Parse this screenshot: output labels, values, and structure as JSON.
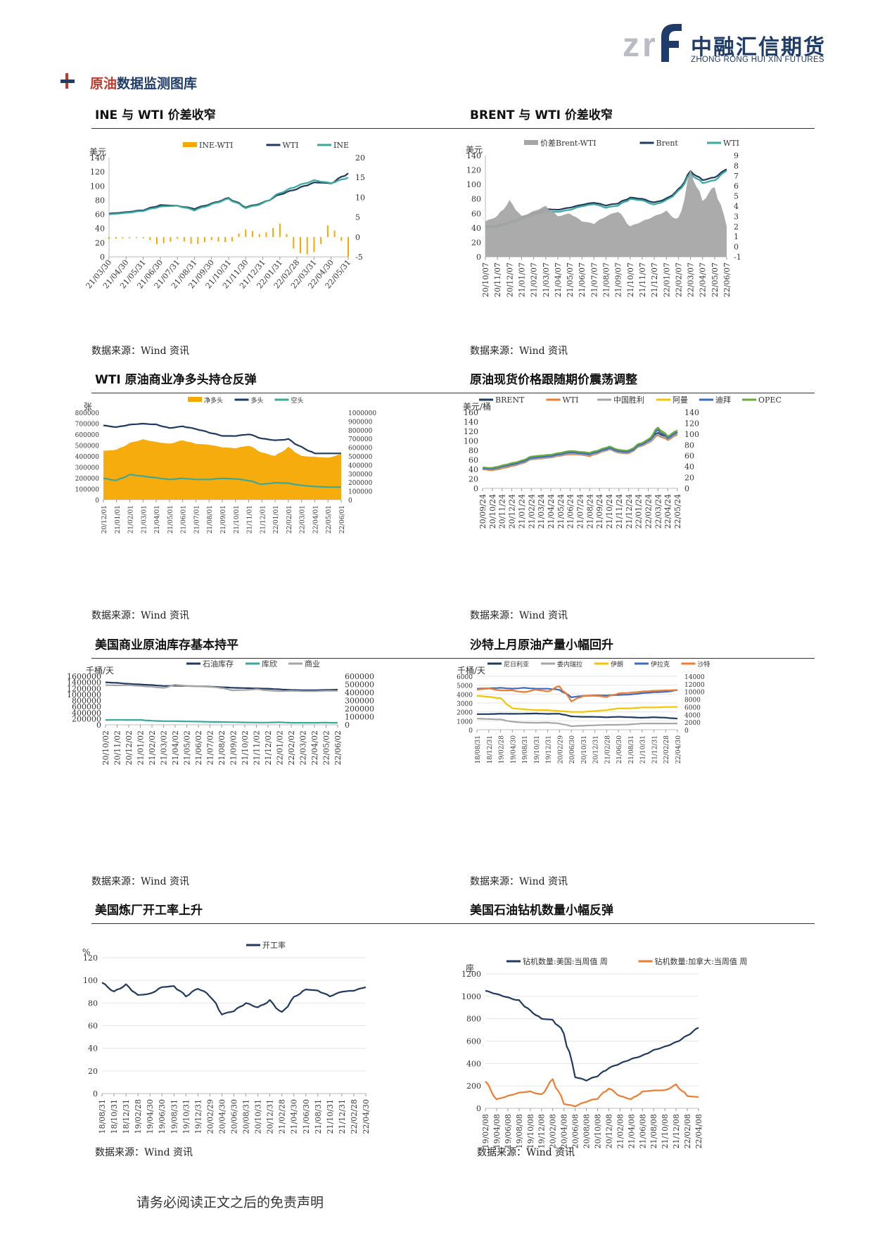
{
  "header": {
    "logo_mark": "znf",
    "logo_cn": "中融汇信期货",
    "logo_en": "ZHONG RONG HUI XIN FUTURES"
  },
  "section": {
    "title_highlight": "原油",
    "title_rest": "数据监测图库"
  },
  "charts": [
    {
      "title": "INE 与 WTI 价差收窄",
      "source": "数据来源：Wind 资讯"
    },
    {
      "title": "BRENT 与 WTI 价差收窄",
      "source": "数据来源：Wind 资讯"
    },
    {
      "title": "WTI 原油商业净多头持仓反弹",
      "source": "数据来源：Wind 资讯"
    },
    {
      "title": "原油现货价格跟随期价震荡调整",
      "source": "数据来源：Wind 资讯"
    },
    {
      "title": "美国商业原油库存基本持平",
      "source": "数据来源：Wind 资讯"
    },
    {
      "title": "沙特上月原油产量小幅回升",
      "source": "数据来源：Wind 资讯"
    },
    {
      "title": "美国炼厂开工率上升",
      "source": "数据来源：Wind 资讯"
    },
    {
      "title": "美国石油钻机数量小幅反弹",
      "source": "数据来源：Wind 资讯"
    }
  ],
  "footer": "请务必阅读正文之后的免责声明",
  "colors": {
    "navy": "#1f3a5f",
    "teal": "#3aa99a",
    "orange": "#f5a800",
    "gray": "#a6a6a6",
    "orange2": "#ed7d31",
    "yellow": "#f5c400",
    "blue": "#3b6bc4",
    "green": "#6aaa3a"
  },
  "chart_data": [
    {
      "type": "line",
      "ylabel": "美元",
      "legend": [
        "INE-WTI",
        "WTI",
        "INE"
      ],
      "x": [
        "21/03/30",
        "21/04/30",
        "21/05/31",
        "21/06/30",
        "21/07/31",
        "21/08/31",
        "21/09/30",
        "21/10/31",
        "21/11/30",
        "21/12/31",
        "22/01/31",
        "22/02/28",
        "22/03/31",
        "22/04/30",
        "22/05/31"
      ],
      "ylim": [
        0,
        140
      ],
      "y2lim": [
        -5,
        20
      ],
      "yticks": [
        0,
        20,
        40,
        60,
        80,
        100,
        120,
        140
      ],
      "y2ticks": [
        -5,
        0,
        5,
        10,
        15,
        20
      ],
      "series": [
        {
          "name": "WTI",
          "values": [
            61,
            63,
            66,
            73,
            72,
            68,
            75,
            83,
            70,
            76,
            88,
            96,
            105,
            104,
            118
          ]
        },
        {
          "name": "INE",
          "values": [
            60,
            62,
            65,
            71,
            72,
            66,
            74,
            82,
            69,
            75,
            90,
            100,
            108,
            104,
            112
          ]
        },
        {
          "name": "INE-WTI",
          "values": [
            -0.5,
            -0.3,
            -0.2,
            -2,
            -0.5,
            -2,
            -0.8,
            -1.5,
            2,
            0.5,
            3.5,
            -4,
            -4.5,
            4,
            -5
          ]
        }
      ]
    },
    {
      "type": "line",
      "ylabel": "美元",
      "legend": [
        "价差Brent-WTI",
        "Brent",
        "WTI"
      ],
      "x": [
        "20/10/07",
        "20/11/07",
        "20/12/07",
        "21/01/07",
        "21/02/07",
        "21/03/07",
        "21/04/07",
        "21/05/07",
        "21/06/07",
        "21/07/07",
        "21/08/07",
        "21/09/07",
        "21/10/07",
        "21/11/07",
        "21/12/07",
        "22/01/07",
        "22/02/07",
        "22/03/07",
        "22/04/07",
        "22/05/07",
        "22/06/07"
      ],
      "ylim": [
        0,
        140
      ],
      "y2lim": [
        -1,
        9
      ],
      "yticks": [
        0,
        20,
        40,
        60,
        80,
        100,
        120,
        140
      ],
      "y2ticks": [
        -1,
        0,
        1,
        2,
        3,
        4,
        5,
        6,
        7,
        8,
        9
      ],
      "series": [
        {
          "name": "Brent",
          "values": [
            42,
            43,
            48,
            54,
            60,
            66,
            65,
            68,
            72,
            75,
            71,
            74,
            82,
            80,
            75,
            80,
            92,
            118,
            106,
            110,
            121
          ]
        },
        {
          "name": "WTI",
          "values": [
            40,
            41,
            46,
            51,
            58,
            63,
            62,
            65,
            70,
            73,
            68,
            71,
            80,
            78,
            72,
            78,
            90,
            115,
            102,
            106,
            119
          ]
        },
        {
          "name": "价差Brent-WTI",
          "values": [
            2.5,
            3,
            4.5,
            3,
            3.5,
            4,
            3,
            3.3,
            2.5,
            2.3,
            3,
            3.5,
            2,
            2.5,
            3,
            3.5,
            2.5,
            7.5,
            4.5,
            6,
            2
          ]
        }
      ]
    },
    {
      "type": "area",
      "ylabel": "张",
      "legend": [
        "净多头",
        "多头",
        "空头"
      ],
      "x": [
        "20/12/01",
        "21/01/01",
        "21/02/01",
        "21/03/01",
        "21/04/01",
        "21/05/01",
        "21/06/01",
        "21/07/01",
        "21/08/01",
        "21/09/01",
        "21/10/01",
        "21/11/01",
        "21/12/01",
        "22/01/01",
        "22/02/01",
        "22/03/01",
        "22/04/01",
        "22/05/01",
        "22/06/01"
      ],
      "ylim": [
        0,
        800000
      ],
      "y2lim": [
        0,
        1000000
      ],
      "yticks": [
        0,
        100000,
        200000,
        300000,
        400000,
        500000,
        600000,
        700000,
        800000
      ],
      "y2ticks": [
        0,
        100000,
        200000,
        300000,
        400000,
        500000,
        600000,
        700000,
        800000,
        900000,
        1000000
      ],
      "series": [
        {
          "name": "净多头",
          "values": [
            560000,
            570000,
            650000,
            690000,
            660000,
            640000,
            680000,
            640000,
            630000,
            600000,
            590000,
            620000,
            540000,
            500000,
            600000,
            500000,
            490000,
            480000,
            520000
          ]
        },
        {
          "name": "多头",
          "values": [
            850000,
            830000,
            860000,
            870000,
            860000,
            820000,
            840000,
            810000,
            770000,
            730000,
            730000,
            750000,
            700000,
            680000,
            690000,
            600000,
            530000,
            530000,
            530000
          ]
        },
        {
          "name": "空头",
          "values": [
            195000,
            175000,
            230000,
            215000,
            200000,
            185000,
            195000,
            185000,
            185000,
            195000,
            190000,
            175000,
            140000,
            155000,
            150000,
            130000,
            120000,
            115000,
            115000
          ]
        }
      ]
    },
    {
      "type": "line",
      "ylabel": "美元/桶",
      "legend": [
        "BRENT",
        "WTI",
        "中国胜利",
        "阿曼",
        "迪拜",
        "OPEC"
      ],
      "x": [
        "20/09/24",
        "20/10/24",
        "20/11/24",
        "20/12/24",
        "21/01/24",
        "21/02/24",
        "21/03/24",
        "21/04/24",
        "21/05/24",
        "21/06/24",
        "21/07/24",
        "21/08/24",
        "21/09/24",
        "21/10/24",
        "21/11/24",
        "21/12/24",
        "22/01/24",
        "22/02/24",
        "22/03/24",
        "22/04/24",
        "22/05/24"
      ],
      "ylim": [
        0,
        160
      ],
      "y2lim": [
        0,
        140
      ],
      "yticks": [
        0,
        20,
        40,
        60,
        80,
        100,
        120,
        140,
        160
      ],
      "y2ticks": [
        0,
        20,
        40,
        60,
        80,
        100,
        120,
        140
      ],
      "series": [
        {
          "name": "BRENT",
          "values": [
            42,
            41,
            46,
            50,
            55,
            64,
            66,
            68,
            72,
            76,
            74,
            72,
            78,
            85,
            78,
            76,
            90,
            98,
            117,
            106,
            118
          ]
        },
        {
          "name": "WTI",
          "values": [
            40,
            38,
            42,
            47,
            52,
            61,
            63,
            65,
            69,
            72,
            71,
            68,
            75,
            82,
            75,
            73,
            87,
            95,
            112,
            102,
            113
          ]
        },
        {
          "name": "中国胜利",
          "values": [
            41,
            40,
            44,
            49,
            53,
            62,
            64,
            66,
            70,
            73,
            72,
            70,
            76,
            83,
            76,
            74,
            88,
            96,
            114,
            104,
            115
          ]
        },
        {
          "name": "阿曼",
          "values": [
            43,
            42,
            47,
            51,
            56,
            65,
            67,
            69,
            73,
            77,
            75,
            73,
            79,
            86,
            79,
            77,
            91,
            100,
            125,
            108,
            119
          ]
        },
        {
          "name": "迪拜",
          "values": [
            42,
            41,
            46,
            50,
            55,
            64,
            66,
            68,
            72,
            76,
            74,
            72,
            78,
            85,
            78,
            76,
            90,
            99,
            123,
            106,
            118
          ]
        },
        {
          "name": "OPEC",
          "values": [
            44,
            43,
            48,
            53,
            58,
            67,
            69,
            71,
            75,
            79,
            77,
            75,
            81,
            88,
            81,
            79,
            93,
            102,
            128,
            110,
            122
          ]
        }
      ]
    },
    {
      "type": "line",
      "ylabel": "千桶/天",
      "legend": [
        "石油库存",
        "库欣",
        "商业"
      ],
      "x": [
        "20/10/02",
        "20/11/02",
        "20/12/02",
        "21/01/02",
        "21/02/02",
        "21/03/02",
        "21/04/02",
        "21/05/02",
        "21/06/02",
        "21/07/02",
        "21/08/02",
        "21/09/02",
        "21/10/02",
        "21/11/02",
        "21/12/02",
        "22/01/02",
        "22/02/02",
        "22/03/02",
        "22/04/02",
        "22/05/02",
        "22/06/02"
      ],
      "ylim": [
        0,
        1600000
      ],
      "y2lim": [
        0,
        600000
      ],
      "yticks": [
        0,
        200000,
        400000,
        600000,
        800000,
        1000000,
        1200000,
        1400000,
        1600000
      ],
      "y2ticks": [
        0,
        100000,
        200000,
        300000,
        400000,
        500000,
        600000
      ],
      "series": [
        {
          "name": "石油库存",
          "values": [
            1400000,
            1380000,
            1350000,
            1330000,
            1310000,
            1280000,
            1290000,
            1280000,
            1270000,
            1260000,
            1240000,
            1220000,
            1210000,
            1200000,
            1190000,
            1170000,
            1150000,
            1140000,
            1140000,
            1150000,
            1160000
          ]
        },
        {
          "name": "商业",
          "values": [
            490000,
            487000,
            490000,
            480000,
            470000,
            455000,
            495000,
            480000,
            475000,
            470000,
            455000,
            425000,
            430000,
            440000,
            425000,
            415000,
            420000,
            415000,
            415000,
            420000,
            420000
          ]
        },
        {
          "name": "库欣",
          "values": [
            60000,
            61000,
            60000,
            60000,
            50000,
            45000,
            45000,
            42000,
            40000,
            36000,
            35000,
            33000,
            30000,
            28000,
            28000,
            32000,
            25000,
            25000,
            25000,
            27000,
            24000
          ]
        }
      ]
    },
    {
      "type": "line",
      "ylabel": "千桶/天",
      "legend": [
        "尼日利亚",
        "委内瑞拉",
        "伊朗",
        "伊拉克",
        "沙特"
      ],
      "x": [
        "18/08/31",
        "18/12/31",
        "19/02/28",
        "19/04/30",
        "19/08/31",
        "19/10/31",
        "19/12/31",
        "20/02/29",
        "20/06/30",
        "20/10/31",
        "20/12/31",
        "21/02/28",
        "21/06/30",
        "21/08/31",
        "21/10/31",
        "21/12/31",
        "22/02/28",
        "22/04/30"
      ],
      "ylim": [
        0,
        6000
      ],
      "y2lim": [
        0,
        14000
      ],
      "yticks": [
        0,
        1000,
        2000,
        3000,
        4000,
        5000,
        6000
      ],
      "y2ticks": [
        0,
        2000,
        4000,
        6000,
        8000,
        10000,
        12000,
        14000
      ],
      "series": [
        {
          "name": "尼日利亚",
          "values": [
            1750,
            1750,
            1800,
            1780,
            1800,
            1820,
            1780,
            1800,
            1500,
            1450,
            1450,
            1400,
            1450,
            1400,
            1350,
            1400,
            1350,
            1250
          ]
        },
        {
          "name": "委内瑞拉",
          "values": [
            1250,
            1200,
            1150,
            900,
            800,
            780,
            800,
            700,
            400,
            450,
            500,
            550,
            550,
            600,
            700,
            700,
            700,
            700
          ]
        },
        {
          "name": "伊朗",
          "values": [
            3800,
            3700,
            3500,
            2400,
            2300,
            2200,
            2200,
            2100,
            2000,
            2000,
            2100,
            2200,
            2400,
            2400,
            2500,
            2500,
            2550,
            2550
          ]
        },
        {
          "name": "伊拉克",
          "values": [
            4600,
            4650,
            4700,
            4600,
            4700,
            4600,
            4600,
            4500,
            3650,
            3800,
            3850,
            3850,
            3900,
            3950,
            4100,
            4200,
            4250,
            4450
          ]
        },
        {
          "name": "沙特",
          "values": [
            10500,
            10800,
            10300,
            10300,
            9800,
            10500,
            10000,
            11500,
            7500,
            8800,
            8900,
            8600,
            9500,
            9700,
            10000,
            10200,
            10300,
            10400
          ]
        }
      ]
    },
    {
      "type": "line",
      "ylabel": "%",
      "legend": [
        "开工率"
      ],
      "x": [
        "18/08/31",
        "18/10/31",
        "18/12/31",
        "19/02/28",
        "19/04/30",
        "19/06/30",
        "19/08/31",
        "19/10/31",
        "19/12/31",
        "20/02/29",
        "20/04/30",
        "20/06/30",
        "20/08/31",
        "20/10/31",
        "20/12/31",
        "21/02/28",
        "21/04/30",
        "21/06/30",
        "21/08/31",
        "21/10/31",
        "21/12/31",
        "22/02/28",
        "22/04/30"
      ],
      "ylim": [
        0,
        120
      ],
      "yticks": [
        0,
        20,
        40,
        60,
        80,
        100,
        120
      ],
      "series": [
        {
          "name": "开工率",
          "values": [
            98,
            90,
            96,
            87,
            88,
            94,
            95,
            86,
            93,
            87,
            70,
            73,
            80,
            76,
            82,
            71,
            85,
            92,
            91,
            86,
            90,
            91,
            94
          ]
        }
      ]
    },
    {
      "type": "line",
      "ylabel": "座",
      "legend": [
        "钻机数量:美国:当周值 周",
        "钻机数量:加拿大:当周值 周"
      ],
      "x": [
        "19/02/08",
        "19/04/08",
        "19/06/08",
        "19/08/08",
        "19/10/08",
        "19/12/08",
        "20/02/08",
        "20/04/08",
        "20/06/08",
        "20/08/08",
        "20/10/08",
        "20/12/08",
        "21/02/08",
        "21/04/08",
        "21/06/08",
        "21/08/08",
        "21/10/08",
        "21/12/08",
        "22/02/08",
        "22/04/08"
      ],
      "ylim": [
        0,
        1200
      ],
      "yticks": [
        0,
        200,
        400,
        600,
        800,
        1000,
        1200
      ],
      "series": [
        {
          "name": "钻机数量:美国:当周值 周",
          "values": [
            1050,
            1020,
            990,
            960,
            870,
            800,
            790,
            680,
            280,
            250,
            290,
            360,
            400,
            440,
            470,
            520,
            550,
            590,
            650,
            720
          ]
        },
        {
          "name": "钻机数量:加拿大:当周值 周",
          "values": [
            240,
            80,
            110,
            140,
            150,
            120,
            260,
            40,
            20,
            60,
            90,
            180,
            110,
            80,
            150,
            160,
            160,
            210,
            110,
            100
          ]
        }
      ]
    }
  ]
}
